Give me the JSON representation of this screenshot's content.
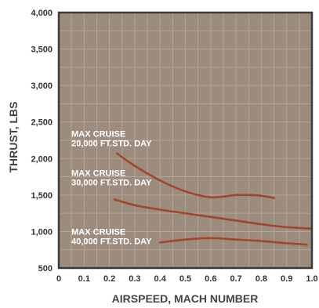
{
  "chart_data": {
    "type": "line",
    "title": "",
    "xlabel": "AIRSPEED, MACH NUMBER",
    "ylabel": "THRUST, LBS",
    "xlim": [
      0,
      1.0
    ],
    "ylim": [
      500,
      4000
    ],
    "x_ticks": [
      0,
      0.1,
      0.2,
      0.3,
      0.4,
      0.5,
      0.6,
      0.7,
      0.8,
      0.9,
      1.0
    ],
    "x_tick_labels": [
      "0",
      "0.1",
      "0.2",
      "0.3",
      "0.4",
      "0.5",
      "0.6",
      "0.7",
      "0.8",
      "0.9",
      "1.0"
    ],
    "y_ticks": [
      500,
      1000,
      1500,
      2000,
      2500,
      3000,
      3500,
      4000
    ],
    "y_tick_labels": [
      "500",
      "1,000",
      "1,500",
      "2,000",
      "2,500",
      "3,000",
      "3,500",
      "4,000"
    ],
    "grid": true,
    "legend": "none",
    "colors": {
      "plot_bg": "#9b8c7e",
      "grid": "#b7aa9d",
      "frame": "#3b3b3b",
      "line": "#a6442b",
      "annotation_text": "#ffffff"
    },
    "series": [
      {
        "x": [
          0.23,
          0.3,
          0.4,
          0.5,
          0.6,
          0.7,
          0.75,
          0.8,
          0.85
        ],
        "y": [
          2070,
          1900,
          1700,
          1550,
          1470,
          1500,
          1500,
          1490,
          1460
        ]
      },
      {
        "x": [
          0.22,
          0.3,
          0.4,
          0.5,
          0.6,
          0.7,
          0.8,
          0.9,
          1.0
        ],
        "y": [
          1440,
          1360,
          1300,
          1250,
          1200,
          1150,
          1100,
          1060,
          1040
        ]
      },
      {
        "x": [
          0.4,
          0.5,
          0.6,
          0.7,
          0.8,
          0.9,
          0.98
        ],
        "y": [
          850,
          890,
          910,
          890,
          870,
          840,
          820
        ]
      }
    ],
    "annotations": [
      {
        "lines": [
          "MAX CRUISE",
          "20,000 FT.STD. DAY"
        ],
        "x": 0.05,
        "y": 2300
      },
      {
        "lines": [
          "MAX CRUISE",
          "30,000 FT.STD. DAY"
        ],
        "x": 0.05,
        "y": 1760
      },
      {
        "lines": [
          "MAX CRUISE",
          "40,000 FT.STD. DAY"
        ],
        "x": 0.05,
        "y": 955
      }
    ]
  }
}
